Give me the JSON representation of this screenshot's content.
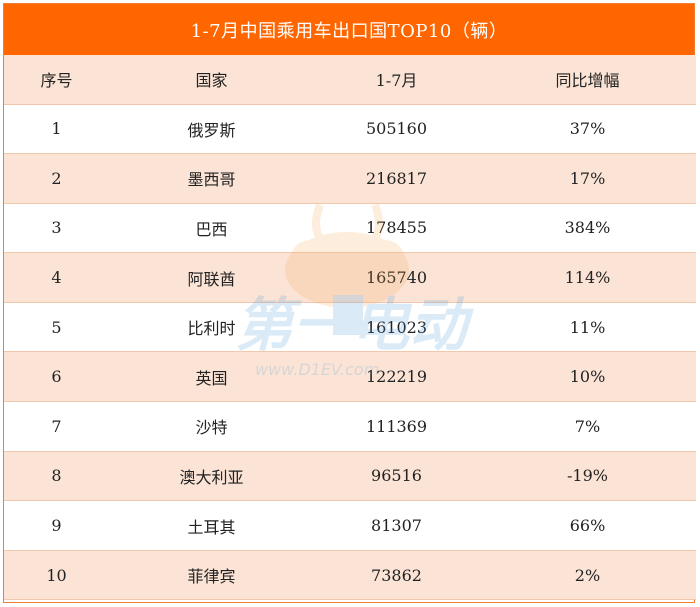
{
  "chart_data": {
    "type": "table",
    "title": "1-7月中国乘用车出口国TOP10（辆）",
    "columns": [
      "序号",
      "国家",
      "1-7月",
      "同比增幅"
    ],
    "rows": [
      [
        "1",
        "俄罗斯",
        "505160",
        "37%"
      ],
      [
        "2",
        "墨西哥",
        "216817",
        "17%"
      ],
      [
        "3",
        "巴西",
        "178455",
        "384%"
      ],
      [
        "4",
        "阿联酋",
        "165740",
        "114%"
      ],
      [
        "5",
        "比利时",
        "161023",
        "11%"
      ],
      [
        "6",
        "英国",
        "122219",
        "10%"
      ],
      [
        "7",
        "沙特",
        "111369",
        "7%"
      ],
      [
        "8",
        "澳大利亚",
        "96516",
        "-19%"
      ],
      [
        "9",
        "土耳其",
        "81307",
        "66%"
      ],
      [
        "10",
        "菲律宾",
        "73862",
        "2%"
      ]
    ]
  },
  "watermark": {
    "brand": "第一电动",
    "url": "www.D1EV.com",
    "colors": {
      "orange": "#f5a04a",
      "blue": "#3a8fd8"
    }
  }
}
